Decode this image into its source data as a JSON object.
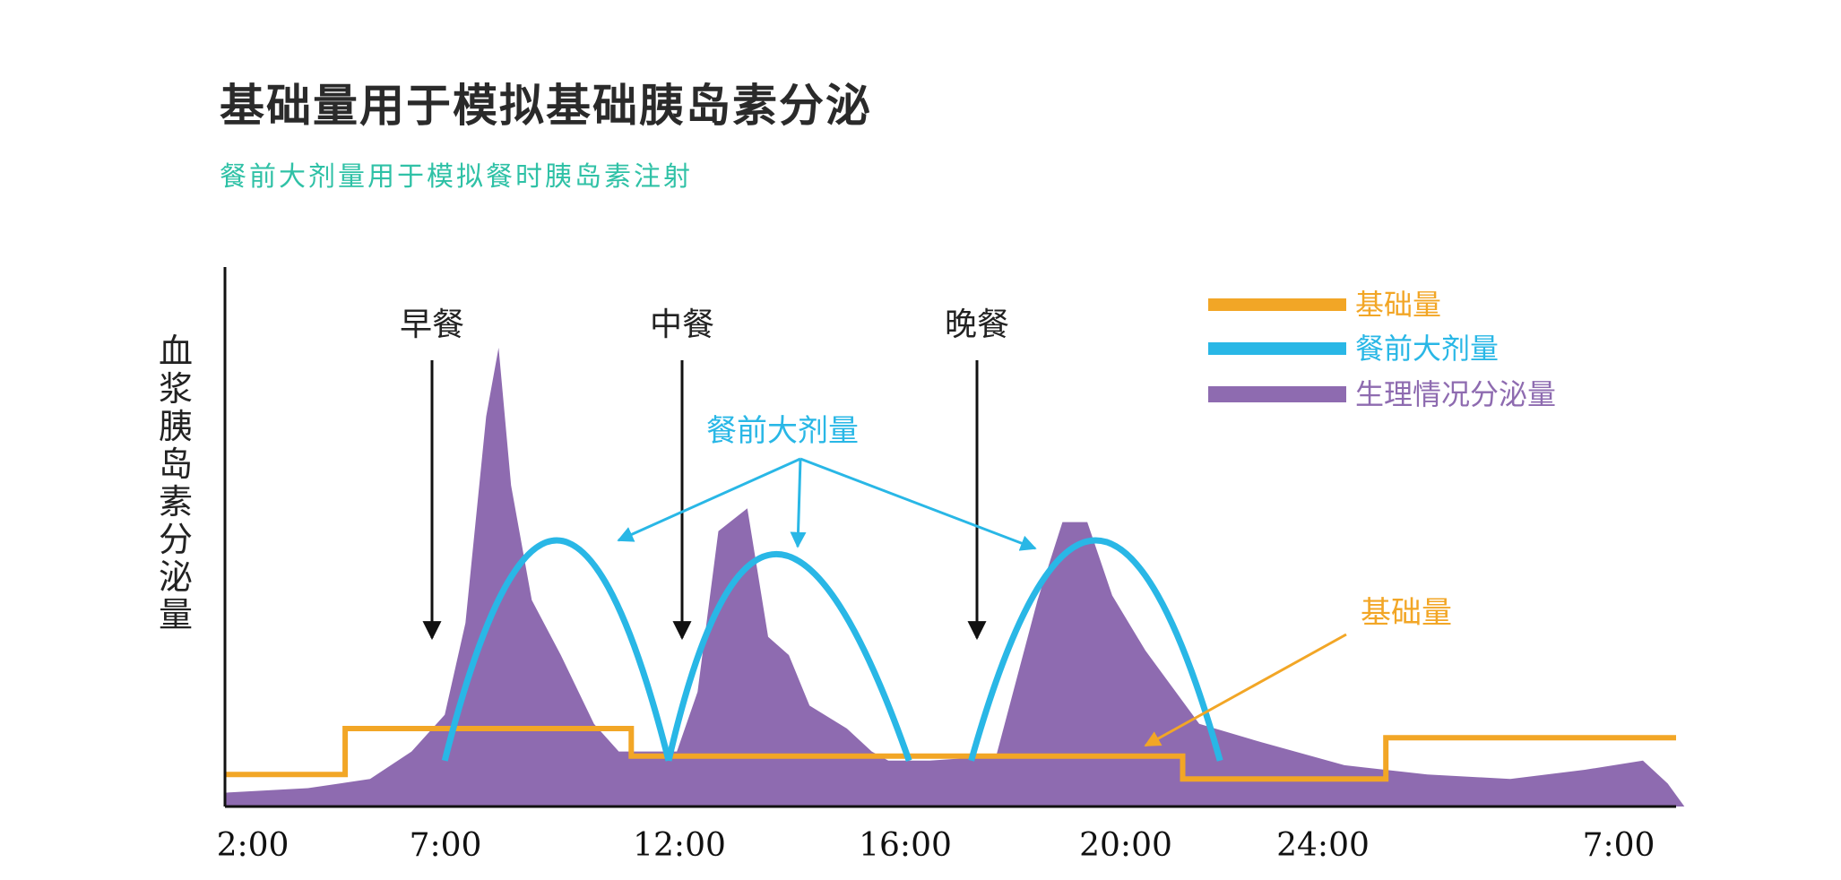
{
  "title": "基础量用于模拟基础胰岛素分泌",
  "subtitle": "餐前大剂量用于模拟餐时胰岛素注射",
  "chart_data": {
    "type": "area",
    "title": "",
    "ylabel": "血浆胰岛素分泌量",
    "xlabel": "",
    "x_ticks": [
      "2:00",
      "7:00",
      "12:00",
      "16:00",
      "20:00",
      "24:00",
      "7:00"
    ],
    "meals": [
      {
        "label": "早餐",
        "time": 7.0
      },
      {
        "label": "中餐",
        "time": 12.0
      },
      {
        "label": "晚餐",
        "time": 17.0
      }
    ],
    "legend": [
      {
        "label": "基础量",
        "color": "#f2a626"
      },
      {
        "label": "餐前大剂量",
        "color": "#29b7e6"
      },
      {
        "label": "生理情况分泌量",
        "color": "#8e6bb0"
      }
    ],
    "annotations": {
      "bolus_label": "餐前大剂量",
      "basal_label": "基础量"
    },
    "colors": {
      "basal": "#f2a626",
      "bolus": "#29b7e6",
      "physiological": "#8e6bb0",
      "axis": "#111111"
    },
    "axis_time_range": [
      2,
      33
    ],
    "y_range": [
      0,
      1
    ],
    "series": [
      {
        "name": "生理情况分泌量",
        "type": "area",
        "points": [
          [
            2,
            0.03
          ],
          [
            4,
            0.04
          ],
          [
            5.5,
            0.06
          ],
          [
            6.5,
            0.12
          ],
          [
            7.3,
            0.2
          ],
          [
            7.8,
            0.4
          ],
          [
            8.3,
            0.85
          ],
          [
            8.6,
            1.0
          ],
          [
            8.9,
            0.7
          ],
          [
            9.4,
            0.45
          ],
          [
            10.1,
            0.33
          ],
          [
            10.9,
            0.18
          ],
          [
            11.5,
            0.12
          ],
          [
            12.9,
            0.12
          ],
          [
            13.4,
            0.25
          ],
          [
            13.9,
            0.6
          ],
          [
            14.6,
            0.65
          ],
          [
            15.1,
            0.37
          ],
          [
            15.6,
            0.33
          ],
          [
            16.1,
            0.22
          ],
          [
            17.0,
            0.17
          ],
          [
            17.6,
            0.12
          ],
          [
            18.0,
            0.1
          ],
          [
            19.0,
            0.1
          ],
          [
            20.6,
            0.11
          ],
          [
            21.6,
            0.45
          ],
          [
            22.2,
            0.62
          ],
          [
            22.8,
            0.62
          ],
          [
            23.4,
            0.46
          ],
          [
            24.2,
            0.34
          ],
          [
            25.5,
            0.18
          ],
          [
            27.0,
            0.14
          ],
          [
            29.0,
            0.09
          ],
          [
            31.0,
            0.07
          ],
          [
            33.0,
            0.06
          ],
          [
            34.8,
            0.08
          ],
          [
            36.2,
            0.1
          ],
          [
            36.8,
            0.05
          ],
          [
            37.2,
            0.0
          ]
        ]
      },
      {
        "name": "基础量",
        "type": "step",
        "points": [
          [
            2,
            0.07
          ],
          [
            4.9,
            0.07
          ],
          [
            4.9,
            0.17
          ],
          [
            11.8,
            0.17
          ],
          [
            11.8,
            0.11
          ],
          [
            25.1,
            0.11
          ],
          [
            25.1,
            0.06
          ],
          [
            30.0,
            0.06
          ],
          [
            30.0,
            0.15
          ],
          [
            37.0,
            0.15
          ]
        ]
      },
      {
        "name": "餐前大剂量",
        "type": "arcs",
        "arcs": [
          {
            "start": 7.3,
            "peak": 10.0,
            "end": 12.7,
            "height": 0.58
          },
          {
            "start": 12.7,
            "peak": 15.0,
            "end": 18.5,
            "height": 0.55
          },
          {
            "start": 20.0,
            "peak": 23.0,
            "end": 26.0,
            "height": 0.58
          }
        ]
      }
    ]
  }
}
